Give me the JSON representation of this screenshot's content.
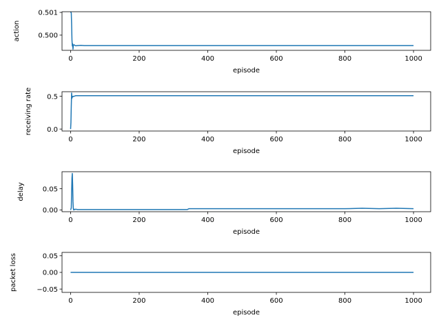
{
  "chart_data": [
    {
      "type": "line",
      "xlabel": "episode",
      "ylabel": "action",
      "xlim": [
        -25,
        1050
      ],
      "ylim": [
        0.49933,
        0.50103
      ],
      "xticks": [
        0,
        200,
        400,
        600,
        800,
        1000
      ],
      "xtick_labels": [
        "0",
        "200",
        "400",
        "600",
        "800",
        "1000"
      ],
      "yticks": [
        0.5,
        0.501
      ],
      "ytick_labels": [
        "0.500",
        "0.501"
      ],
      "series": [
        {
          "color": "#1f77b4",
          "x": [
            0,
            2,
            3,
            4,
            5,
            6,
            7,
            8,
            10,
            12,
            15,
            20,
            30,
            40,
            60,
            100,
            200,
            300,
            400,
            500,
            600,
            700,
            800,
            900,
            1000
          ],
          "y": [
            0.50102,
            0.50098,
            0.5005,
            0.4998,
            0.49952,
            0.49962,
            0.49938,
            0.49955,
            0.49958,
            0.49955,
            0.49953,
            0.49954,
            0.49955,
            0.49954,
            0.49954,
            0.49954,
            0.49954,
            0.49954,
            0.49954,
            0.49954,
            0.49954,
            0.49954,
            0.49954,
            0.49954,
            0.49954
          ]
        }
      ]
    },
    {
      "type": "line",
      "xlabel": "episode",
      "ylabel": "receiving rate",
      "xlim": [
        -25,
        1050
      ],
      "ylim": [
        -0.03,
        0.57
      ],
      "xticks": [
        0,
        200,
        400,
        600,
        800,
        1000
      ],
      "xtick_labels": [
        "0",
        "200",
        "400",
        "600",
        "800",
        "1000"
      ],
      "yticks": [
        0,
        0.5
      ],
      "ytick_labels": [
        "0.0",
        "0.5"
      ],
      "series": [
        {
          "color": "#1f77b4",
          "x": [
            0,
            1,
            2,
            3,
            4,
            5,
            6,
            8,
            10,
            15,
            20,
            50,
            100,
            200,
            300,
            400,
            500,
            600,
            700,
            800,
            900,
            1000
          ],
          "y": [
            0.0,
            0.1,
            0.35,
            0.55,
            0.47,
            0.5,
            0.49,
            0.5,
            0.5,
            0.51,
            0.51,
            0.51,
            0.51,
            0.51,
            0.51,
            0.51,
            0.51,
            0.51,
            0.51,
            0.51,
            0.51,
            0.51
          ]
        }
      ]
    },
    {
      "type": "line",
      "xlabel": "episode",
      "ylabel": "delay",
      "xlim": [
        -25,
        1050
      ],
      "ylim": [
        -0.004,
        0.09
      ],
      "xticks": [
        0,
        200,
        400,
        600,
        800,
        1000
      ],
      "xtick_labels": [
        "0",
        "200",
        "400",
        "600",
        "800",
        "1000"
      ],
      "yticks": [
        0,
        0.05
      ],
      "ytick_labels": [
        "0.00",
        "0.05"
      ],
      "series": [
        {
          "color": "#1f77b4",
          "x": [
            0,
            2,
            3,
            4,
            5,
            6,
            7,
            8,
            9,
            10,
            12,
            15,
            20,
            50,
            100,
            200,
            340,
            345,
            350,
            400,
            500,
            600,
            700,
            800,
            850,
            900,
            950,
            1000
          ],
          "y": [
            0.0,
            0.005,
            0.04,
            0.075,
            0.086,
            0.06,
            0.02,
            0.003,
            0.0,
            0.002,
            0.001,
            0.002,
            0.001,
            0.001,
            0.001,
            0.001,
            0.001,
            0.003,
            0.003,
            0.003,
            0.003,
            0.003,
            0.003,
            0.003,
            0.004,
            0.003,
            0.004,
            0.003
          ]
        }
      ]
    },
    {
      "type": "line",
      "xlabel": "episode",
      "ylabel": "packet loss",
      "xlim": [
        -25,
        1050
      ],
      "ylim": [
        -0.06,
        0.06
      ],
      "xticks": [
        0,
        200,
        400,
        600,
        800,
        1000
      ],
      "xtick_labels": [
        "0",
        "200",
        "400",
        "600",
        "800",
        "1000"
      ],
      "yticks": [
        -0.05,
        0,
        0.05
      ],
      "ytick_labels": [
        "−0.05",
        "0.00",
        "0.05"
      ],
      "series": [
        {
          "color": "#1f77b4",
          "x": [
            0,
            1000
          ],
          "y": [
            0.0,
            0.0
          ]
        }
      ]
    }
  ]
}
